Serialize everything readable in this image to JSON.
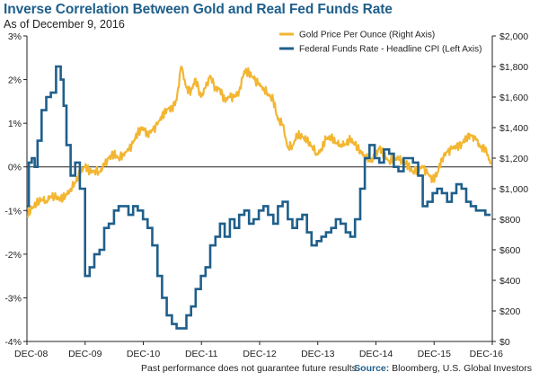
{
  "header": {
    "title": "Inverse Correlation Between Gold and Real Fed Funds Rate",
    "subtitle": "As of December 9, 2016"
  },
  "footer": {
    "note": "Past performance does not guarantee future results.",
    "source_label": "Source:",
    "source_text": "Bloomberg, U.S. Global Investors"
  },
  "colors": {
    "gold": "#f2b632",
    "fed": "#1f5f8b",
    "axis": "#222222"
  },
  "chart_data": {
    "type": "line",
    "title": "Inverse Correlation Between Gold and Real Fed Funds Rate",
    "subtitle": "As of December 9, 2016",
    "x_ticks": [
      "DEC-08",
      "DEC-09",
      "DEC-10",
      "DEC-11",
      "DEC-12",
      "DEC-13",
      "DEC-14",
      "DEC-15",
      "DEC-16"
    ],
    "x_range": [
      2008.917,
      2016.95
    ],
    "left_axis": {
      "ylim": [
        -4,
        3
      ],
      "ticks": [
        "-4%",
        "-3%",
        "-2%",
        "-1%",
        "0%",
        "1%",
        "2%",
        "3%"
      ],
      "values": [
        -4,
        -3,
        -2,
        -1,
        0,
        1,
        2,
        3
      ]
    },
    "right_axis": {
      "ylim": [
        0,
        2000
      ],
      "ticks": [
        "$0",
        "$200",
        "$400",
        "$600",
        "$800",
        "$1,000",
        "$1,200",
        "$1,400",
        "$1,600",
        "$1,800",
        "$2,000"
      ],
      "values": [
        0,
        200,
        400,
        600,
        800,
        1000,
        1200,
        1400,
        1600,
        1800,
        2000
      ]
    },
    "legend_position": "top-right",
    "series": [
      {
        "name": "Gold Price Per Ounce (Right Axis)",
        "axis": "right",
        "x": [
          2008.92,
          2009.0,
          2009.08,
          2009.17,
          2009.25,
          2009.33,
          2009.42,
          2009.5,
          2009.58,
          2009.67,
          2009.75,
          2009.83,
          2009.92,
          2010.0,
          2010.08,
          2010.17,
          2010.25,
          2010.33,
          2010.42,
          2010.5,
          2010.58,
          2010.67,
          2010.75,
          2010.83,
          2010.92,
          2011.0,
          2011.08,
          2011.17,
          2011.25,
          2011.33,
          2011.42,
          2011.5,
          2011.58,
          2011.67,
          2011.75,
          2011.83,
          2011.92,
          2012.0,
          2012.08,
          2012.17,
          2012.25,
          2012.33,
          2012.42,
          2012.5,
          2012.58,
          2012.67,
          2012.75,
          2012.83,
          2012.92,
          2013.0,
          2013.08,
          2013.17,
          2013.25,
          2013.33,
          2013.42,
          2013.5,
          2013.58,
          2013.67,
          2013.75,
          2013.83,
          2013.92,
          2014.0,
          2014.08,
          2014.17,
          2014.25,
          2014.33,
          2014.42,
          2014.5,
          2014.58,
          2014.67,
          2014.75,
          2014.83,
          2014.92,
          2015.0,
          2015.08,
          2015.17,
          2015.25,
          2015.33,
          2015.42,
          2015.5,
          2015.58,
          2015.67,
          2015.75,
          2015.83,
          2015.92,
          2016.0,
          2016.08,
          2016.17,
          2016.25,
          2016.33,
          2016.42,
          2016.5,
          2016.58,
          2016.67,
          2016.75,
          2016.83,
          2016.92
        ],
        "y": [
          820,
          870,
          900,
          930,
          920,
          950,
          940,
          930,
          950,
          1000,
          1040,
          1100,
          1150,
          1110,
          1120,
          1110,
          1150,
          1200,
          1230,
          1200,
          1230,
          1250,
          1300,
          1370,
          1400,
          1360,
          1380,
          1420,
          1480,
          1520,
          1530,
          1580,
          1800,
          1660,
          1640,
          1720,
          1600,
          1660,
          1740,
          1660,
          1650,
          1580,
          1600,
          1600,
          1640,
          1770,
          1760,
          1720,
          1680,
          1660,
          1620,
          1580,
          1450,
          1420,
          1270,
          1280,
          1350,
          1340,
          1310,
          1280,
          1230,
          1250,
          1330,
          1330,
          1300,
          1290,
          1290,
          1320,
          1290,
          1240,
          1220,
          1180,
          1200,
          1270,
          1220,
          1180,
          1200,
          1190,
          1180,
          1150,
          1110,
          1130,
          1140,
          1100,
          1060,
          1100,
          1200,
          1240,
          1260,
          1280,
          1290,
          1340,
          1350,
          1320,
          1270,
          1270,
          1160
        ]
      },
      {
        "name": "Federal Funds Rate - Headline CPI (Left Axis)",
        "axis": "left",
        "x": [
          2008.92,
          2008.95,
          2009.0,
          2009.05,
          2009.1,
          2009.17,
          2009.25,
          2009.33,
          2009.42,
          2009.5,
          2009.55,
          2009.6,
          2009.67,
          2009.75,
          2009.83,
          2009.92,
          2010.0,
          2010.08,
          2010.17,
          2010.25,
          2010.33,
          2010.42,
          2010.5,
          2010.58,
          2010.67,
          2010.75,
          2010.83,
          2010.92,
          2011.0,
          2011.08,
          2011.17,
          2011.25,
          2011.33,
          2011.42,
          2011.5,
          2011.58,
          2011.67,
          2011.75,
          2011.83,
          2011.92,
          2012.0,
          2012.08,
          2012.17,
          2012.25,
          2012.33,
          2012.42,
          2012.5,
          2012.58,
          2012.67,
          2012.75,
          2012.83,
          2012.92,
          2013.0,
          2013.08,
          2013.17,
          2013.25,
          2013.33,
          2013.42,
          2013.5,
          2013.58,
          2013.67,
          2013.75,
          2013.83,
          2013.92,
          2014.0,
          2014.08,
          2014.17,
          2014.25,
          2014.33,
          2014.42,
          2014.5,
          2014.58,
          2014.67,
          2014.75,
          2014.83,
          2014.92,
          2015.0,
          2015.08,
          2015.17,
          2015.25,
          2015.33,
          2015.42,
          2015.5,
          2015.58,
          2015.67,
          2015.75,
          2015.83,
          2015.92,
          2016.0,
          2016.08,
          2016.17,
          2016.25,
          2016.33,
          2016.42,
          2016.5,
          2016.58,
          2016.67,
          2016.75,
          2016.83,
          2016.92
        ],
        "y": [
          -0.9,
          0.1,
          0.2,
          0.0,
          0.6,
          1.3,
          1.6,
          1.7,
          2.3,
          2.0,
          1.4,
          0.5,
          -0.2,
          0.1,
          -0.5,
          -2.5,
          -2.3,
          -2.0,
          -1.9,
          -1.4,
          -1.3,
          -1.0,
          -0.9,
          -0.9,
          -1.1,
          -0.9,
          -1.0,
          -1.2,
          -1.4,
          -1.8,
          -2.5,
          -3.0,
          -3.4,
          -3.6,
          -3.7,
          -3.7,
          -3.4,
          -3.2,
          -2.8,
          -2.5,
          -2.3,
          -1.8,
          -1.6,
          -1.3,
          -1.6,
          -1.2,
          -1.4,
          -1.1,
          -1.0,
          -1.3,
          -1.2,
          -1.0,
          -0.9,
          -1.1,
          -1.3,
          -0.9,
          -0.8,
          -1.2,
          -1.4,
          -1.2,
          -1.1,
          -1.5,
          -1.8,
          -1.7,
          -1.6,
          -1.5,
          -1.4,
          -1.2,
          -1.3,
          -1.5,
          -1.6,
          -1.2,
          -0.5,
          0.2,
          0.5,
          0.2,
          0.1,
          0.4,
          0.3,
          0.0,
          -0.1,
          0.2,
          0.2,
          0.1,
          -0.2,
          -0.9,
          -0.8,
          -0.6,
          -0.5,
          -0.6,
          -0.8,
          -0.6,
          -0.4,
          -0.5,
          -0.8,
          -0.9,
          -1.0,
          -1.0,
          -1.1,
          -1.1
        ]
      }
    ]
  }
}
